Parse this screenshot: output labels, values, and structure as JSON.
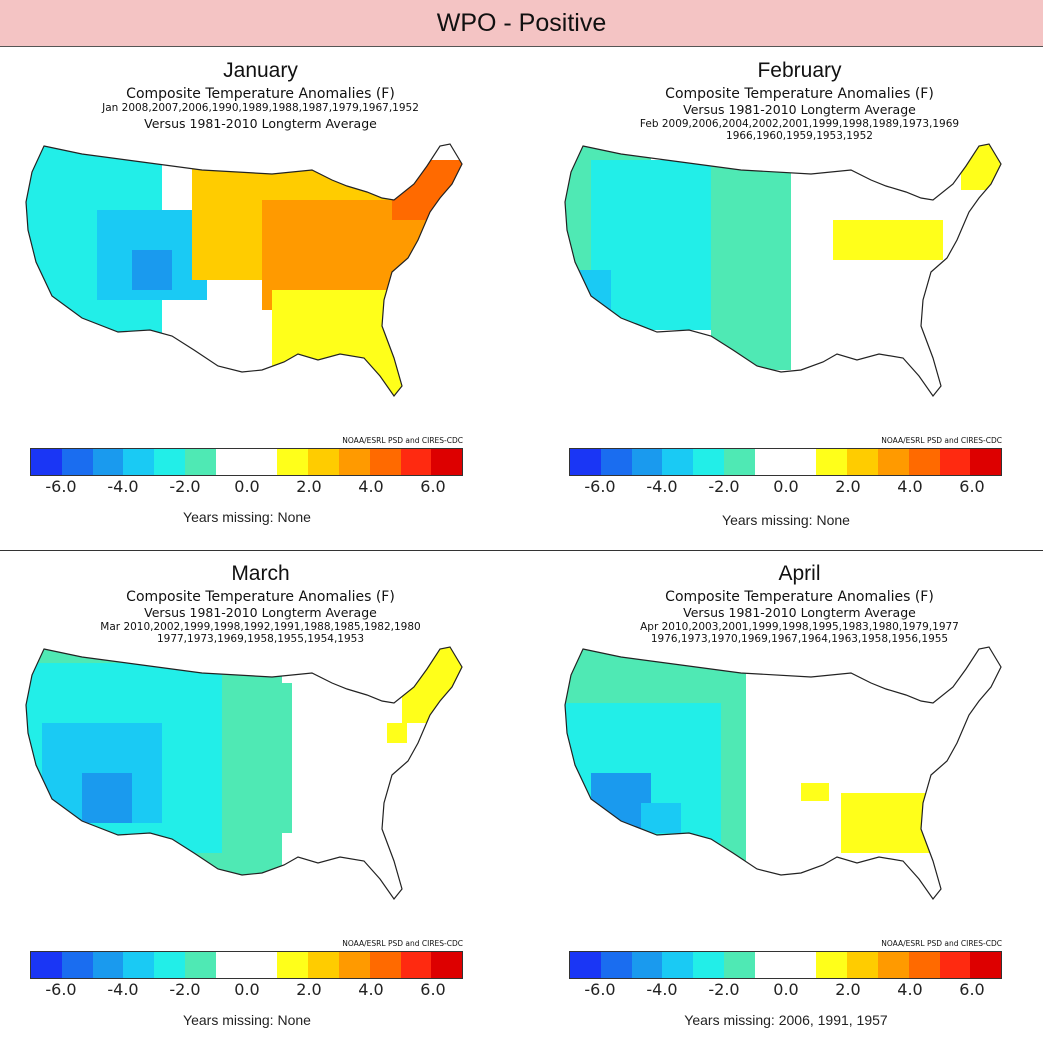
{
  "title": "WPO - Positive",
  "colors": {
    "header_bg": "#f4c4c4",
    "scale": [
      "#1a36f5",
      "#1a6df0",
      "#1a9aee",
      "#1acaf4",
      "#22eee8",
      "#4fe9b4",
      "#ffffff",
      "#ffffff",
      "#ffff1a",
      "#ffcc00",
      "#ff9a00",
      "#ff6a00",
      "#ff2a10",
      "#dd0000"
    ]
  },
  "panels": [
    {
      "month": "January",
      "subtitle": "Composite Temperature Anomalies (F)",
      "line2": "Jan  2008,2007,2006,1990,1989,1988,1987,1979,1967,1952",
      "line3": "Versus 1981-2010 Longterm Average",
      "line4": "",
      "credit": "NOAA/ESRL PSD and CIRES-CDC",
      "ticks": [
        "-6.0",
        "-4.0",
        "-2.0",
        "0.0",
        "2.0",
        "4.0",
        "6.0"
      ],
      "missing": "Years missing: None",
      "map_icon": "us-temperature-anomaly-map"
    },
    {
      "month": "February",
      "subtitle": "Composite Temperature Anomalies (F)",
      "line2": "Versus 1981-2010 Longterm Average",
      "line3": "Feb  2009,2006,2004,2002,2001,1999,1998,1989,1973,1969",
      "line4": "1966,1960,1959,1953,1952",
      "credit": "NOAA/ESRL PSD and CIRES-CDC",
      "ticks": [
        "-6.0",
        "-4.0",
        "-2.0",
        "0.0",
        "2.0",
        "4.0",
        "6.0"
      ],
      "missing": "Years missing: None",
      "map_icon": "us-temperature-anomaly-map"
    },
    {
      "month": "March",
      "subtitle": "Composite Temperature Anomalies (F)",
      "line2": "Versus 1981-2010 Longterm Average",
      "line3": "Mar  2010,2002,1999,1998,1992,1991,1988,1985,1982,1980",
      "line4": "1977,1973,1969,1958,1955,1954,1953",
      "credit": "NOAA/ESRL PSD and CIRES-CDC",
      "ticks": [
        "-6.0",
        "-4.0",
        "-2.0",
        "0.0",
        "2.0",
        "4.0",
        "6.0"
      ],
      "missing": "Years missing: None",
      "map_icon": "us-temperature-anomaly-map"
    },
    {
      "month": "April",
      "subtitle": "Composite Temperature Anomalies (F)",
      "line2": "Versus 1981-2010 Longterm Average",
      "line3": "Apr  2010,2003,2001,1999,1998,1995,1983,1980,1979,1977",
      "line4": "1976,1973,1970,1969,1967,1964,1963,1958,1956,1955",
      "credit": "NOAA/ESRL PSD and CIRES-CDC",
      "ticks": [
        "-6.0",
        "-4.0",
        "-2.0",
        "0.0",
        "2.0",
        "4.0",
        "6.0"
      ],
      "missing": "Years missing: 2006, 1991, 1957",
      "map_icon": "us-temperature-anomaly-map"
    }
  ]
}
